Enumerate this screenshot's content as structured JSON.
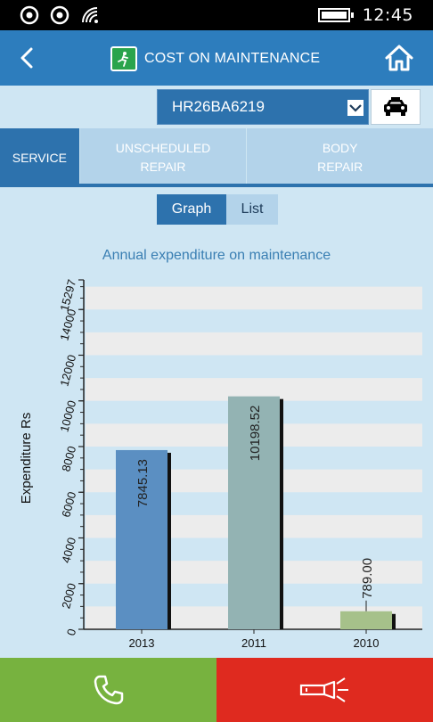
{
  "status_bar": {
    "time": "12:45",
    "icons": [
      "notification-icon",
      "notification-icon",
      "wifi-icon",
      "battery-icon"
    ]
  },
  "header": {
    "title": "COST ON MAINTENANCE",
    "back_icon": "chevron-left-icon",
    "home_icon": "home-icon"
  },
  "vehicle": {
    "selected": "HR26BA6219",
    "car_icon": "car-icon"
  },
  "tabs": [
    {
      "label": "SERVICE",
      "active": true
    },
    {
      "label": "UNSCHEDULED REPAIR",
      "active": false
    },
    {
      "label": "BODY REPAIR",
      "active": false
    }
  ],
  "view_toggle": {
    "graph_label": "Graph",
    "list_label": "List",
    "selected": "Graph"
  },
  "chart_title": "Annual expenditure on maintenance",
  "chart_data": {
    "type": "bar",
    "title": "Annual expenditure on maintenance",
    "xlabel": "",
    "ylabel": "Expenditure Rs",
    "categories": [
      "2013",
      "2011",
      "2010"
    ],
    "values": [
      7845.13,
      10198.52,
      789.0
    ],
    "value_labels": [
      "7845.13",
      "10198.52",
      "789.00"
    ],
    "ylim": [
      0,
      15297
    ],
    "yticks": [
      0,
      2000,
      4000,
      6000,
      8000,
      10000,
      12000,
      14000,
      15297
    ],
    "colors": [
      "#5b8fc2",
      "#93b3b3",
      "#a6c18a"
    ],
    "grid": "horizontal bands"
  },
  "bottom_bar": {
    "call_icon": "phone-icon",
    "sos_icon": "flashlight-icon",
    "call_color": "#77b23f",
    "sos_color": "#df2a1f"
  }
}
